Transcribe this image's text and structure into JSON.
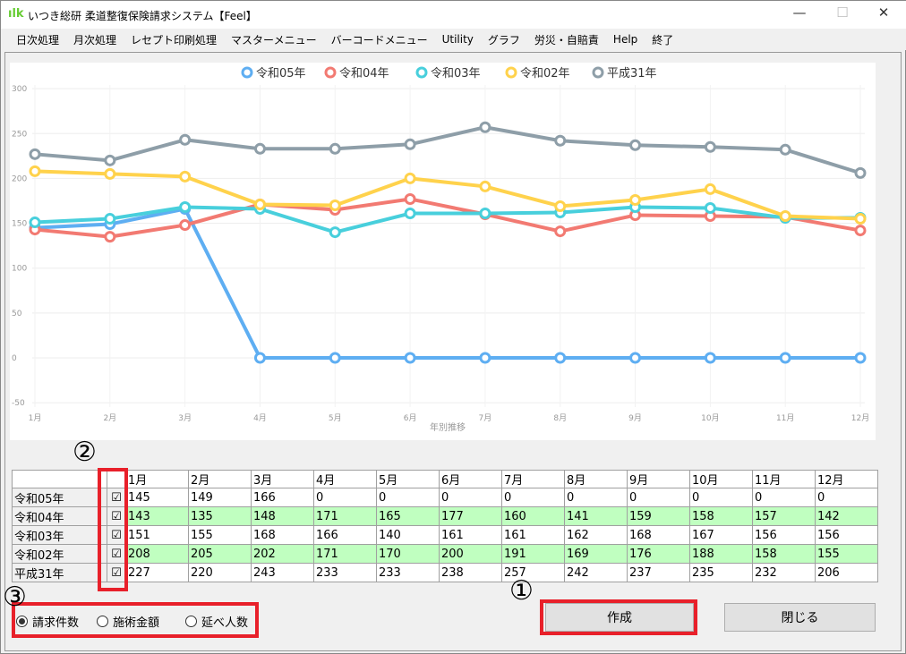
{
  "window": {
    "title": "いつき総研 柔道整復保険請求システム【Feel】",
    "logo": "ilk",
    "minimize": "—",
    "maximize": "☐",
    "close": "✕"
  },
  "menu": [
    "日次処理",
    "月次処理",
    "レセプト印刷処理",
    "マスターメニュー",
    "バーコードメニュー",
    "Utility",
    "グラフ",
    "労災・自賠責",
    "Help",
    "終了"
  ],
  "chart_data": {
    "type": "line",
    "xlabel": "年別推移",
    "categories": [
      "1月",
      "2月",
      "3月",
      "4月",
      "5月",
      "6月",
      "7月",
      "8月",
      "9月",
      "10月",
      "11月",
      "12月"
    ],
    "ylim": [
      -50,
      300
    ],
    "yticks": [
      -50,
      0,
      50,
      100,
      150,
      200,
      250,
      300
    ],
    "legend_position": "top-right",
    "series": [
      {
        "name": "令和05年",
        "color": "#5eaef2",
        "values": [
          145,
          149,
          166,
          0,
          0,
          0,
          0,
          0,
          0,
          0,
          0,
          0
        ]
      },
      {
        "name": "令和04年",
        "color": "#f27a72",
        "values": [
          143,
          135,
          148,
          171,
          165,
          177,
          160,
          141,
          159,
          158,
          157,
          142
        ]
      },
      {
        "name": "令和03年",
        "color": "#48cfdc",
        "values": [
          151,
          155,
          168,
          166,
          140,
          161,
          161,
          162,
          168,
          167,
          156,
          156
        ]
      },
      {
        "name": "令和02年",
        "color": "#ffd24c",
        "values": [
          208,
          205,
          202,
          171,
          170,
          200,
          191,
          169,
          176,
          188,
          158,
          155
        ]
      },
      {
        "name": "平成31年",
        "color": "#8e9ea8",
        "values": [
          227,
          220,
          243,
          233,
          233,
          238,
          257,
          242,
          237,
          235,
          232,
          206
        ]
      }
    ]
  },
  "table": {
    "checked": "☑",
    "months": [
      "1月",
      "2月",
      "3月",
      "4月",
      "5月",
      "6月",
      "7月",
      "8月",
      "9月",
      "10月",
      "11月",
      "12月"
    ]
  },
  "options": {
    "selected": 0,
    "items": [
      "請求件数",
      "施術金額",
      "延べ人数"
    ]
  },
  "buttons": {
    "create": "作成",
    "close": "閉じる"
  },
  "annotations": [
    "①",
    "②",
    "③"
  ]
}
